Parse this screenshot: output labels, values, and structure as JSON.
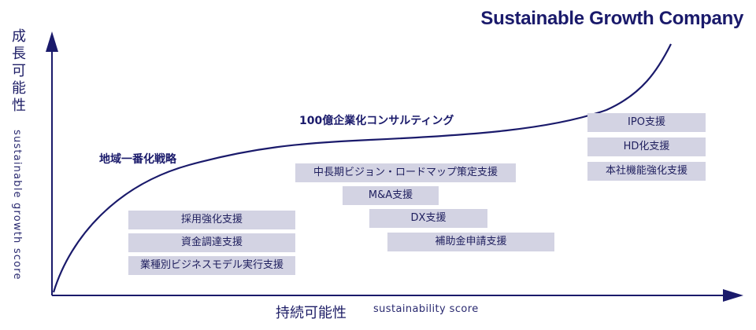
{
  "brand": "Sustainable Growth Company",
  "y_axis": {
    "label_jp": "成長可能性",
    "label_en": "sustainable growth score"
  },
  "x_axis": {
    "label_jp": "持続可能性",
    "label_en": "sustainability score"
  },
  "stages": [
    "地域一番化戦略",
    "100億企業化コンサルティング"
  ],
  "services": {
    "group1": [
      "採用強化支援",
      "資金調達支援",
      "業種別ビジネスモデル実行支援"
    ],
    "group2": [
      "中長期ビジョン・ロードマップ策定支援",
      "M&A支援",
      "DX支援",
      "補助金申請支援"
    ],
    "group3": [
      "IPO支援",
      "HD化支援",
      "本社機能強化支援"
    ]
  },
  "colors": {
    "navy": "#1a1a6b",
    "box": "#d3d3e3"
  }
}
